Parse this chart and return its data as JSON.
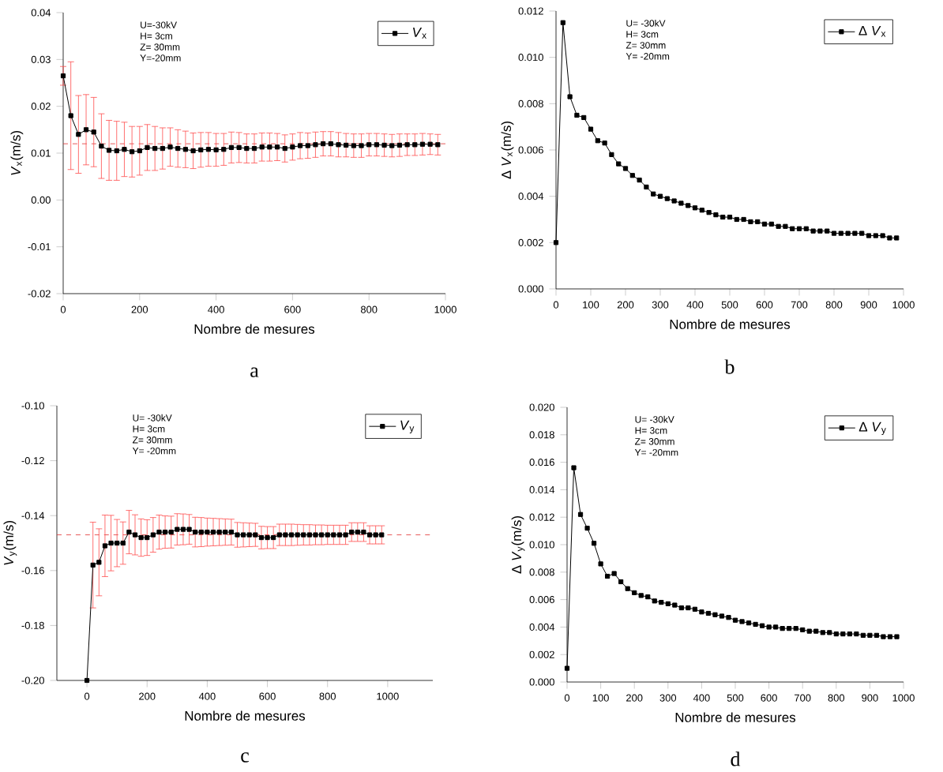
{
  "chart_data": [
    {
      "type": "line",
      "xlabel": "Nombre de mesures",
      "ylabel": "*V*$_{x}$(m/s)",
      "annotations": [
        "U=-30kV",
        "H= 3cm",
        "Z= 30mm",
        "Y=-20mm",
        "a"
      ],
      "x": [
        0,
        20,
        40,
        60,
        80,
        100,
        120,
        140,
        160,
        180,
        200,
        220,
        240,
        260,
        280,
        300,
        320,
        340,
        360,
        380,
        400,
        420,
        440,
        460,
        480,
        500,
        520,
        540,
        560,
        580,
        600,
        620,
        640,
        660,
        680,
        700,
        720,
        740,
        760,
        780,
        800,
        820,
        840,
        860,
        880,
        900,
        920,
        940,
        960,
        980
      ],
      "series": [
        {
          "name": "*V*$_{x}$",
          "color": "#000000",
          "values": [
            0.0265,
            0.018,
            0.014,
            0.015,
            0.0145,
            0.0115,
            0.0106,
            0.0105,
            0.0108,
            0.0103,
            0.0105,
            0.0112,
            0.011,
            0.011,
            0.0113,
            0.011,
            0.0108,
            0.0105,
            0.0107,
            0.0108,
            0.0107,
            0.0108,
            0.0112,
            0.0112,
            0.011,
            0.011,
            0.0113,
            0.0113,
            0.0113,
            0.011,
            0.0113,
            0.0116,
            0.0116,
            0.0118,
            0.012,
            0.012,
            0.0118,
            0.0117,
            0.0116,
            0.0116,
            0.0118,
            0.0118,
            0.0117,
            0.0116,
            0.0117,
            0.0118,
            0.0118,
            0.0119,
            0.0119,
            0.0118
          ],
          "errors": [
            0.002,
            0.0115,
            0.0083,
            0.0075,
            0.0074,
            0.0069,
            0.0064,
            0.0063,
            0.0058,
            0.0054,
            0.0052,
            0.0049,
            0.0047,
            0.0044,
            0.0041,
            0.004,
            0.0039,
            0.0038,
            0.0037,
            0.0036,
            0.0035,
            0.0034,
            0.0033,
            0.0032,
            0.0031,
            0.0031,
            0.003,
            0.003,
            0.0029,
            0.0029,
            0.0028,
            0.0028,
            0.0027,
            0.0027,
            0.0026,
            0.0026,
            0.0026,
            0.0025,
            0.0025,
            0.0025,
            0.0024,
            0.0024,
            0.0024,
            0.0024,
            0.0024,
            0.0023,
            0.0023,
            0.0023,
            0.0022,
            0.0022
          ]
        }
      ],
      "ref_lines": [
        {
          "axis": "y",
          "value": 0.012,
          "color": "#e03030",
          "line_style": "dashed"
        }
      ],
      "xlim": [
        0,
        1000
      ],
      "ylim": [
        -0.02,
        0.04
      ],
      "xticks": [
        0,
        200,
        400,
        600,
        800,
        1000
      ],
      "yticks": [
        {
          "value": -0.02,
          "label": "-0.02"
        },
        {
          "value": -0.01,
          "label": "-0.01"
        },
        {
          "value": 0,
          "label": "0.00"
        },
        {
          "value": 0.01,
          "label": "0.01"
        },
        {
          "value": 0.02,
          "label": "0.02"
        },
        {
          "value": 0.03,
          "label": "0.03"
        },
        {
          "value": 0.04,
          "label": "0.04"
        }
      ],
      "legend": "top right",
      "marker": "square",
      "line_style": "solid"
    },
    {
      "type": "line",
      "xlabel": "Nombre de mesures",
      "ylabel": "Δ *V*$_{x}$(m/s)",
      "annotations": [
        "U= -30kV",
        "H= 3cm",
        "Z= 30mm",
        "Y= -20mm",
        "b"
      ],
      "x": [
        0,
        20,
        40,
        60,
        80,
        100,
        120,
        140,
        160,
        180,
        200,
        220,
        240,
        260,
        280,
        300,
        320,
        340,
        360,
        380,
        400,
        420,
        440,
        460,
        480,
        500,
        520,
        540,
        560,
        580,
        600,
        620,
        640,
        660,
        680,
        700,
        720,
        740,
        760,
        780,
        800,
        820,
        840,
        860,
        880,
        900,
        920,
        940,
        960,
        980
      ],
      "series": [
        {
          "name": "Δ *V*$_{x}$",
          "color": "#000000",
          "values": [
            0.002,
            0.0115,
            0.0083,
            0.0075,
            0.0074,
            0.0069,
            0.0064,
            0.0063,
            0.0058,
            0.0054,
            0.0052,
            0.0049,
            0.0047,
            0.0044,
            0.0041,
            0.004,
            0.0039,
            0.0038,
            0.0037,
            0.0036,
            0.0035,
            0.0034,
            0.0033,
            0.0032,
            0.0031,
            0.0031,
            0.003,
            0.003,
            0.0029,
            0.0029,
            0.0028,
            0.0028,
            0.0027,
            0.0027,
            0.0026,
            0.0026,
            0.0026,
            0.0025,
            0.0025,
            0.0025,
            0.0024,
            0.0024,
            0.0024,
            0.0024,
            0.0024,
            0.0023,
            0.0023,
            0.0023,
            0.0022,
            0.0022
          ]
        }
      ],
      "xlim": [
        0,
        1000
      ],
      "ylim": [
        0,
        0.012
      ],
      "xticks": [
        0,
        100,
        200,
        300,
        400,
        500,
        600,
        700,
        800,
        900,
        1000
      ],
      "yticks": [
        {
          "value": 0,
          "label": "0.000"
        },
        {
          "value": 0.002,
          "label": "0.002"
        },
        {
          "value": 0.004,
          "label": "0.004"
        },
        {
          "value": 0.006,
          "label": "0.006"
        },
        {
          "value": 0.008,
          "label": "0.008"
        },
        {
          "value": 0.01,
          "label": "0.010"
        },
        {
          "value": 0.012,
          "label": "0.012"
        }
      ],
      "legend": "top right",
      "marker": "square",
      "line_style": "solid"
    },
    {
      "type": "line",
      "xlabel": "Nombre de mesures",
      "ylabel": "*V*$_{y}$(m/s)",
      "annotations": [
        "U= -30kV",
        "H= 3cm",
        "Z= 30mm",
        "Y= -20mm",
        "c"
      ],
      "x": [
        0,
        20,
        40,
        60,
        80,
        100,
        120,
        140,
        160,
        180,
        200,
        220,
        240,
        260,
        280,
        300,
        320,
        340,
        360,
        380,
        400,
        420,
        440,
        460,
        480,
        500,
        520,
        540,
        560,
        580,
        600,
        620,
        640,
        660,
        680,
        700,
        720,
        740,
        760,
        780,
        800,
        820,
        840,
        860,
        880,
        900,
        920,
        940,
        960,
        980
      ],
      "series": [
        {
          "name": "*V*$_{y}$",
          "color": "#000000",
          "values": [
            -0.2,
            -0.158,
            -0.157,
            -0.151,
            -0.15,
            -0.15,
            -0.15,
            -0.146,
            -0.147,
            -0.148,
            -0.148,
            -0.147,
            -0.146,
            -0.146,
            -0.146,
            -0.145,
            -0.145,
            -0.145,
            -0.146,
            -0.146,
            -0.146,
            -0.146,
            -0.146,
            -0.146,
            -0.146,
            -0.147,
            -0.147,
            -0.147,
            -0.147,
            -0.148,
            -0.148,
            -0.148,
            -0.147,
            -0.147,
            -0.147,
            -0.147,
            -0.147,
            -0.147,
            -0.147,
            -0.147,
            -0.147,
            -0.147,
            -0.147,
            -0.147,
            -0.146,
            -0.146,
            -0.146,
            -0.147,
            -0.147,
            -0.147
          ],
          "errors": [
            null,
            0.0156,
            0.0122,
            0.0112,
            0.0101,
            0.0086,
            0.0077,
            0.0079,
            0.0073,
            0.0068,
            0.0065,
            0.0063,
            0.0062,
            0.0059,
            0.0058,
            0.0057,
            0.0056,
            0.0054,
            0.0054,
            0.0053,
            0.0051,
            0.005,
            0.0049,
            0.0048,
            0.0047,
            0.0045,
            0.0044,
            0.0043,
            0.0042,
            0.0041,
            0.004,
            0.004,
            0.0039,
            0.0039,
            0.0039,
            0.0038,
            0.0037,
            0.0037,
            0.0036,
            0.0036,
            0.0035,
            0.0035,
            0.0035,
            0.0035,
            0.0034,
            0.0034,
            0.0034,
            0.0033,
            0.0033,
            0.0033
          ]
        }
      ],
      "ref_lines": [
        {
          "axis": "y",
          "value": -0.147,
          "color": "#e03030",
          "line_style": "dashed"
        }
      ],
      "xlim": [
        -100,
        1150
      ],
      "ylim": [
        -0.2,
        -0.1
      ],
      "xticks": [
        0,
        200,
        400,
        600,
        800,
        1000
      ],
      "yticks": [
        {
          "value": -0.2,
          "label": "-0.20"
        },
        {
          "value": -0.18,
          "label": "-0.18"
        },
        {
          "value": -0.16,
          "label": "-0.16"
        },
        {
          "value": -0.14,
          "label": "-0.14"
        },
        {
          "value": -0.12,
          "label": "-0.12"
        },
        {
          "value": -0.1,
          "label": "-0.10"
        }
      ],
      "legend": "top right",
      "marker": "square",
      "line_style": "solid"
    },
    {
      "type": "line",
      "xlabel": "Nombre de mesures",
      "ylabel": "Δ *V*$_{y}$(m/s)",
      "annotations": [
        "U= -30kV",
        "H= 3cm",
        "Z= 30mm",
        "Y= -20mm",
        "d"
      ],
      "x": [
        0,
        20,
        40,
        60,
        80,
        100,
        120,
        140,
        160,
        180,
        200,
        220,
        240,
        260,
        280,
        300,
        320,
        340,
        360,
        380,
        400,
        420,
        440,
        460,
        480,
        500,
        520,
        540,
        560,
        580,
        600,
        620,
        640,
        660,
        680,
        700,
        720,
        740,
        760,
        780,
        800,
        820,
        840,
        860,
        880,
        900,
        920,
        940,
        960,
        980
      ],
      "series": [
        {
          "name": "Δ *V*$_{y}$",
          "color": "#000000",
          "values": [
            0.001,
            0.0156,
            0.0122,
            0.0112,
            0.0101,
            0.0086,
            0.0077,
            0.0079,
            0.0073,
            0.0068,
            0.0065,
            0.0063,
            0.0062,
            0.0059,
            0.0058,
            0.0057,
            0.0056,
            0.0054,
            0.0054,
            0.0053,
            0.0051,
            0.005,
            0.0049,
            0.0048,
            0.0047,
            0.0045,
            0.0044,
            0.0043,
            0.0042,
            0.0041,
            0.004,
            0.004,
            0.0039,
            0.0039,
            0.0039,
            0.0038,
            0.0037,
            0.0037,
            0.0036,
            0.0036,
            0.0035,
            0.0035,
            0.0035,
            0.0035,
            0.0034,
            0.0034,
            0.0034,
            0.0033,
            0.0033,
            0.0033
          ]
        }
      ],
      "xlim": [
        0,
        1000
      ],
      "ylim": [
        0,
        0.02
      ],
      "xticks": [
        0,
        100,
        200,
        300,
        400,
        500,
        600,
        700,
        800,
        900,
        1000
      ],
      "yticks": [
        {
          "value": 0,
          "label": "0.000"
        },
        {
          "value": 0.002,
          "label": "0.002"
        },
        {
          "value": 0.004,
          "label": "0.004"
        },
        {
          "value": 0.006,
          "label": "0.006"
        },
        {
          "value": 0.008,
          "label": "0.008"
        },
        {
          "value": 0.01,
          "label": "0.010"
        },
        {
          "value": 0.012,
          "label": "0.012"
        },
        {
          "value": 0.014,
          "label": "0.014"
        },
        {
          "value": 0.016,
          "label": "0.016"
        },
        {
          "value": 0.018,
          "label": "0.018"
        },
        {
          "value": 0.02,
          "label": "0.020"
        }
      ],
      "legend": "top right",
      "marker": "square",
      "line_style": "solid"
    }
  ]
}
